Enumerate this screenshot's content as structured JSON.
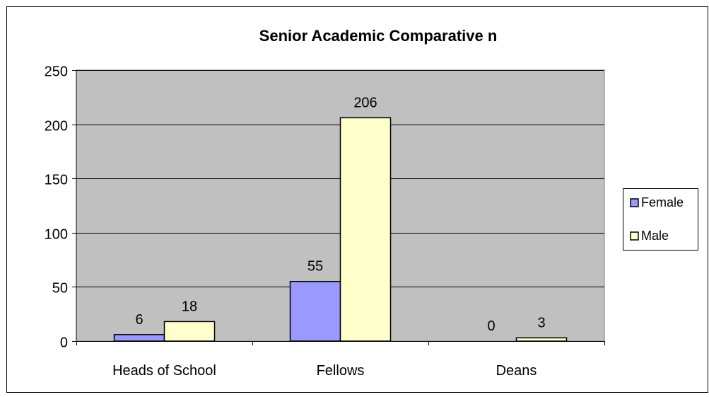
{
  "chart_data": {
    "type": "bar",
    "title": "Senior Academic Comparative n",
    "categories": [
      "Heads of School",
      "Fellows",
      "Deans"
    ],
    "series": [
      {
        "name": "Female",
        "values": [
          6,
          55,
          0
        ],
        "color": "#9999ff"
      },
      {
        "name": "Male",
        "values": [
          18,
          206,
          3
        ],
        "color": "#ffffcc"
      }
    ],
    "ylim": [
      0,
      250
    ],
    "yticks": [
      0,
      50,
      100,
      150,
      200,
      250
    ],
    "grid": true,
    "legend": "right",
    "plot_background": "#c0c0c0"
  }
}
